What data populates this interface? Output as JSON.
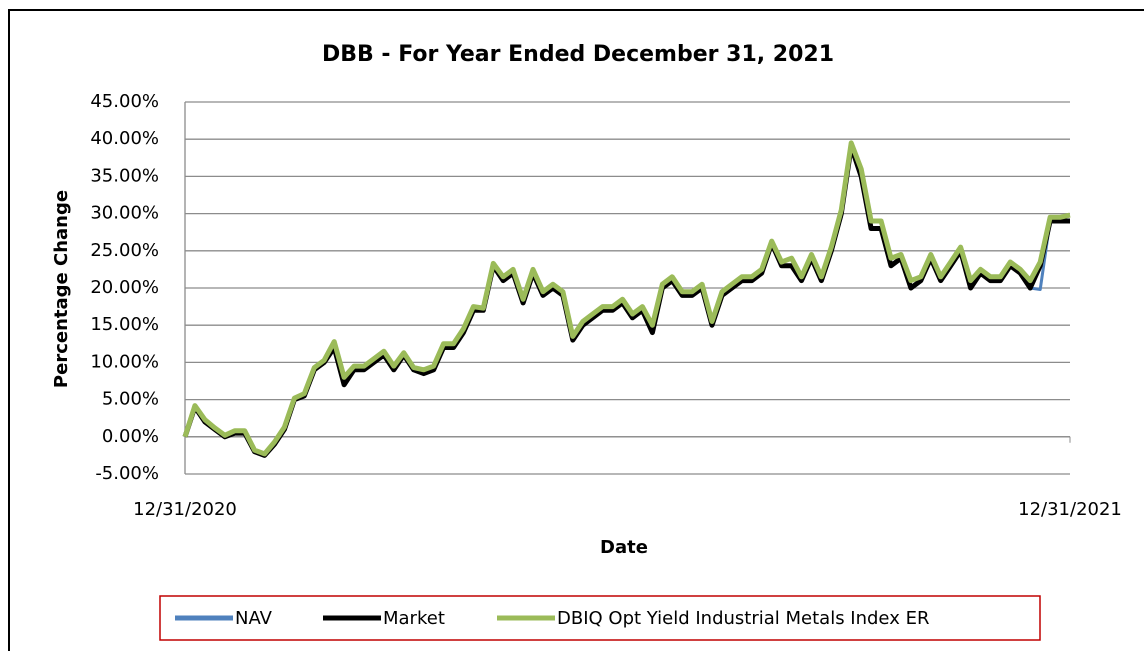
{
  "chart_data": {
    "type": "line",
    "title": "DBB - For Year Ended December 31, 2021",
    "y_label": "Percentage Change",
    "x_label": "Date",
    "categories": [
      "12/31/2020",
      null,
      null,
      null,
      null,
      null,
      null,
      null,
      null,
      null,
      null,
      null,
      null,
      null,
      null,
      null,
      null,
      null,
      null,
      null,
      null,
      null,
      null,
      null,
      null,
      null,
      null,
      null,
      null,
      null,
      null,
      null,
      null,
      null,
      null,
      null,
      null,
      null,
      null,
      null,
      null,
      null,
      null,
      null,
      null,
      null,
      null,
      null,
      null,
      null,
      null,
      null,
      null,
      null,
      null,
      null,
      null,
      null,
      null,
      null,
      null,
      null,
      null,
      null,
      null,
      null,
      null,
      null,
      null,
      null,
      null,
      null,
      null,
      null,
      null,
      null,
      null,
      null,
      null,
      null,
      null,
      null,
      null,
      null,
      null,
      null,
      null,
      null,
      null,
      "12/31/2021"
    ],
    "series": [
      {
        "name": "NAV",
        "color": "#4f81bd",
        "values": [
          0,
          4,
          2,
          1,
          0,
          0.5,
          0.5,
          -2,
          -2.5,
          -1,
          1,
          5,
          5.5,
          9,
          10,
          12,
          7,
          9,
          9,
          10,
          11,
          9,
          11,
          9,
          8.5,
          9,
          12,
          12,
          14,
          17,
          17,
          23,
          21,
          22,
          18,
          22,
          19,
          20,
          19,
          13,
          15,
          16,
          17,
          17,
          18,
          16,
          17,
          14,
          20,
          21,
          19,
          19,
          20,
          15,
          19,
          20,
          21,
          21,
          22,
          26,
          23,
          23,
          21,
          24,
          21,
          25,
          29.5,
          39,
          35,
          28,
          28,
          23,
          24,
          20,
          21,
          24,
          21,
          23,
          25,
          20,
          22,
          21,
          21,
          23,
          22,
          20,
          19.8,
          29,
          29,
          29
        ]
      },
      {
        "name": "Market",
        "color": "#000000",
        "values": [
          0,
          4,
          2,
          1,
          0,
          0.5,
          0.5,
          -2,
          -2.5,
          -1,
          1,
          5,
          5.5,
          9,
          10,
          12,
          7,
          9,
          9,
          10,
          11,
          9,
          11,
          9,
          8.5,
          9,
          12,
          12,
          14,
          17,
          17,
          23,
          21,
          22,
          18,
          22,
          19,
          20,
          19,
          13,
          15,
          16,
          17,
          17,
          18,
          16,
          17,
          14,
          20,
          21,
          19,
          19,
          20,
          15,
          19,
          20,
          21,
          21,
          22,
          26,
          23,
          23,
          21,
          24,
          21,
          25,
          30,
          39,
          35,
          28,
          28,
          23,
          24,
          20,
          21,
          24,
          21,
          23,
          25,
          20,
          22,
          21,
          21,
          23,
          22,
          20,
          23,
          29,
          29,
          29
        ]
      },
      {
        "name": "DBIQ Opt Yield Industrial Metals Index ER",
        "color": "#9bbb59",
        "values": [
          0,
          4.2,
          2.3,
          1.2,
          0.2,
          0.8,
          0.8,
          -1.8,
          -2.3,
          -0.7,
          1.3,
          5.2,
          5.8,
          9.3,
          10.3,
          12.8,
          8,
          9.5,
          9.5,
          10.5,
          11.5,
          9.5,
          11.3,
          9.3,
          9,
          9.5,
          12.5,
          12.5,
          14.5,
          17.5,
          17.3,
          23.3,
          21.5,
          22.5,
          18.5,
          22.5,
          19.5,
          20.5,
          19.5,
          13.5,
          15.5,
          16.5,
          17.5,
          17.5,
          18.5,
          16.5,
          17.5,
          15,
          20.5,
          21.5,
          19.5,
          19.5,
          20.5,
          15.5,
          19.5,
          20.5,
          21.5,
          21.5,
          22.5,
          26.3,
          23.5,
          24,
          21.5,
          24.5,
          21.5,
          25.5,
          30.5,
          39.5,
          36,
          29,
          29,
          24,
          24.5,
          21,
          21.5,
          24.5,
          21.5,
          23.5,
          25.5,
          21,
          22.5,
          21.5,
          21.5,
          23.5,
          22.5,
          21,
          23.5,
          29.5,
          29.5,
          29.8
        ]
      }
    ],
    "ylim": [
      -5,
      45
    ],
    "yticks": [
      {
        "value": -5,
        "label": "-5.00%"
      },
      {
        "value": 0,
        "label": "0.00%"
      },
      {
        "value": 5,
        "label": "5.00%"
      },
      {
        "value": 10,
        "label": "10.00%"
      },
      {
        "value": 15,
        "label": "15.00%"
      },
      {
        "value": 20,
        "label": "20.00%"
      },
      {
        "value": 25,
        "label": "25.00%"
      },
      {
        "value": 30,
        "label": "30.00%"
      },
      {
        "value": 35,
        "label": "35.00%"
      },
      {
        "value": 40,
        "label": "40.00%"
      },
      {
        "value": 45,
        "label": "45.00%"
      }
    ],
    "grid": true,
    "legend": "bottom"
  }
}
